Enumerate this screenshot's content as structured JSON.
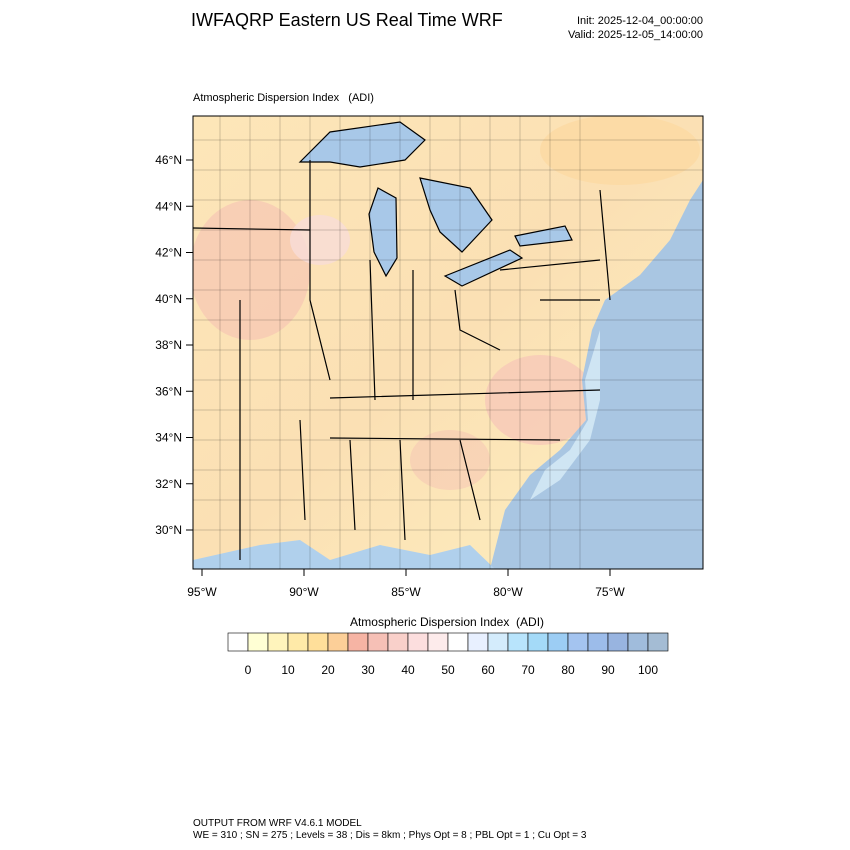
{
  "header": {
    "title": "IWFAQRP Eastern US Real Time WRF",
    "init": "Init: 2025-12-04_00:00:00",
    "valid": "Valid: 2025-12-05_14:00:00"
  },
  "map": {
    "title": "Atmospheric Dispersion Index   (ADI)",
    "lat_labels": [
      "46°N",
      "44°N",
      "42°N",
      "40°N",
      "38°N",
      "36°N",
      "34°N",
      "32°N",
      "30°N"
    ],
    "lon_labels": [
      "95°W",
      "90°W",
      "85°W",
      "80°W",
      "75°W"
    ]
  },
  "colorbar": {
    "title": "Atmospheric Dispersion Index  (ADI)",
    "colors": [
      "#ffffff",
      "#ffffd4",
      "#fff4bc",
      "#ffeaa8",
      "#ffdf9a",
      "#fccf98",
      "#f6b4a4",
      "#f6c0b6",
      "#f9d0ca",
      "#fcdede",
      "#fdebeb",
      "#ffffff",
      "#e8f0ff",
      "#d4ecfc",
      "#b8e4fc",
      "#a4daf8",
      "#9ccdf4",
      "#a4c4f0",
      "#9cbcea",
      "#98b4e0",
      "#a0bcdc",
      "#a4bcd4"
    ],
    "ticks": [
      0,
      10,
      20,
      30,
      40,
      50,
      60,
      70,
      80,
      90,
      100
    ]
  },
  "footer": {
    "lines": [
      "OUTPUT FROM WRF V4.6.1 MODEL",
      "WE = 310 ; SN = 275 ; Levels = 38 ; Dis = 8km ; Phys Opt = 8 ; PBL Opt = 1 ; Cu Opt = 3"
    ]
  }
}
